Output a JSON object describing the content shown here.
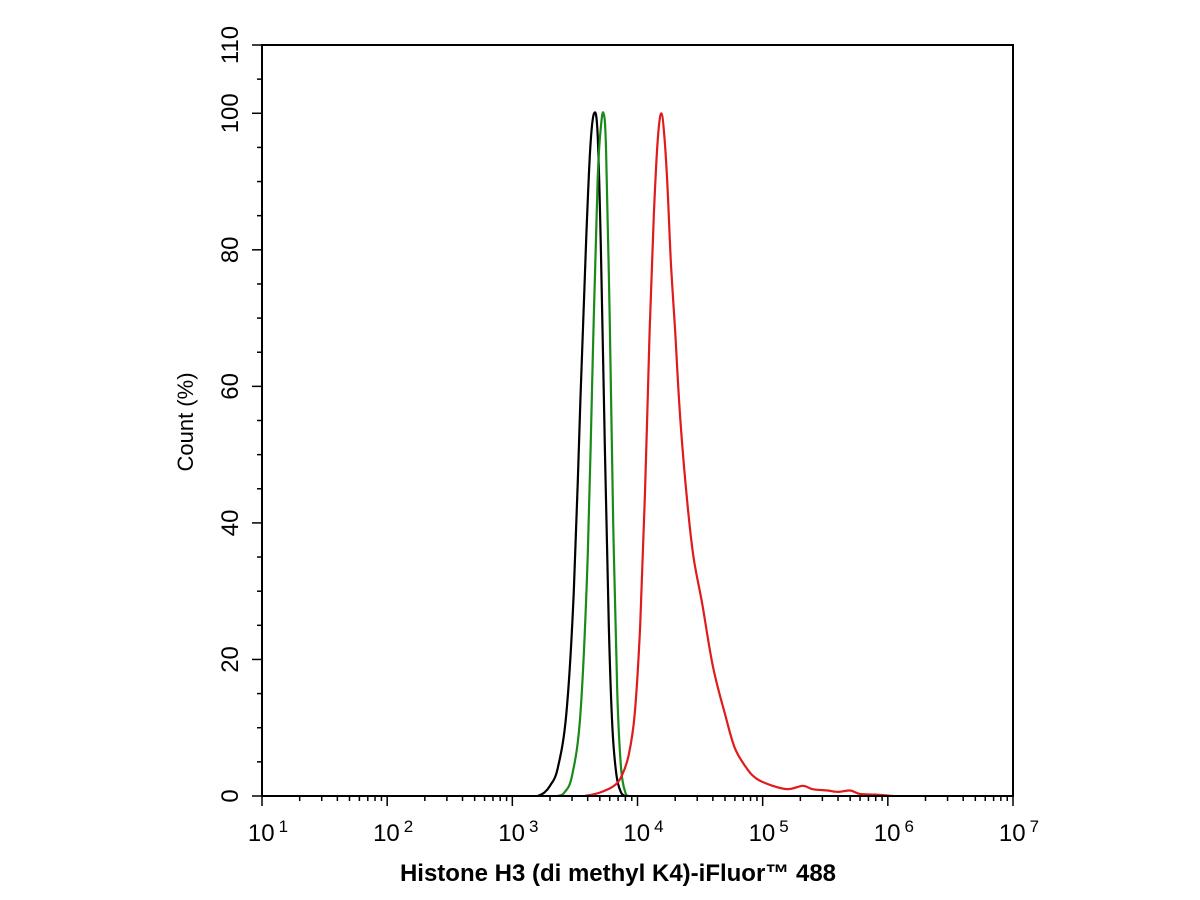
{
  "chart_data": {
    "type": "line",
    "title": "",
    "xlabel": "Histone H3 (di methyl K4)-iFluor™ 488",
    "ylabel": "Count  (%)",
    "x_scale": "log",
    "xlim": [
      10,
      10000000
    ],
    "ylim": [
      0,
      110
    ],
    "x_ticks": [
      {
        "base": "10",
        "exp": "1",
        "value": 10
      },
      {
        "base": "10",
        "exp": "2",
        "value": 100
      },
      {
        "base": "10",
        "exp": "3",
        "value": 1000
      },
      {
        "base": "10",
        "exp": "4",
        "value": 10000
      },
      {
        "base": "10",
        "exp": "5",
        "value": 100000
      },
      {
        "base": "10",
        "exp": "6",
        "value": 1000000
      },
      {
        "base": "10",
        "exp": "7",
        "value": 10000000
      }
    ],
    "y_ticks": [
      "0",
      "20",
      "40",
      "60",
      "80",
      "100",
      "110"
    ],
    "grid": false,
    "legend": "none",
    "series": [
      {
        "color": "#000000",
        "points": [
          [
            1600,
            0
          ],
          [
            1800,
            0.5
          ],
          [
            2000,
            1.5
          ],
          [
            2300,
            4
          ],
          [
            2700,
            12
          ],
          [
            3100,
            30
          ],
          [
            3500,
            58
          ],
          [
            3900,
            82
          ],
          [
            4200,
            95
          ],
          [
            4500,
            100
          ],
          [
            4800,
            97
          ],
          [
            5100,
            80
          ],
          [
            5500,
            50
          ],
          [
            5900,
            25
          ],
          [
            6300,
            10
          ],
          [
            6800,
            3
          ],
          [
            7400,
            0.5
          ],
          [
            8000,
            0
          ]
        ]
      },
      {
        "color": "#1a8a1a",
        "points": [
          [
            2300,
            0
          ],
          [
            2600,
            0.5
          ],
          [
            3000,
            3
          ],
          [
            3500,
            12
          ],
          [
            4000,
            35
          ],
          [
            4400,
            65
          ],
          [
            4800,
            90
          ],
          [
            5100,
            98
          ],
          [
            5350,
            100
          ],
          [
            5600,
            95
          ],
          [
            6000,
            70
          ],
          [
            6400,
            40
          ],
          [
            6900,
            15
          ],
          [
            7400,
            4
          ],
          [
            8000,
            0.5
          ],
          [
            8500,
            0
          ]
        ]
      },
      {
        "color": "#e01b1b",
        "points": [
          [
            3800,
            0
          ],
          [
            5000,
            0.5
          ],
          [
            6500,
            1.5
          ],
          [
            7500,
            3
          ],
          [
            8500,
            6
          ],
          [
            9500,
            12
          ],
          [
            10500,
            25
          ],
          [
            11500,
            45
          ],
          [
            12500,
            68
          ],
          [
            13500,
            85
          ],
          [
            14500,
            96
          ],
          [
            15500,
            100
          ],
          [
            16500,
            96
          ],
          [
            17500,
            88
          ],
          [
            18500,
            78
          ],
          [
            20000,
            68
          ],
          [
            22000,
            55
          ],
          [
            25000,
            43
          ],
          [
            28000,
            35
          ],
          [
            33000,
            28
          ],
          [
            40000,
            19
          ],
          [
            50000,
            12
          ],
          [
            60000,
            7
          ],
          [
            75000,
            4
          ],
          [
            90000,
            2.5
          ],
          [
            120000,
            1.5
          ],
          [
            160000,
            1
          ],
          [
            210000,
            1.5
          ],
          [
            250000,
            1
          ],
          [
            330000,
            0.8
          ],
          [
            400000,
            0.6
          ],
          [
            500000,
            0.8
          ],
          [
            600000,
            0.3
          ],
          [
            800000,
            0.2
          ],
          [
            1100000,
            0
          ]
        ]
      }
    ]
  }
}
